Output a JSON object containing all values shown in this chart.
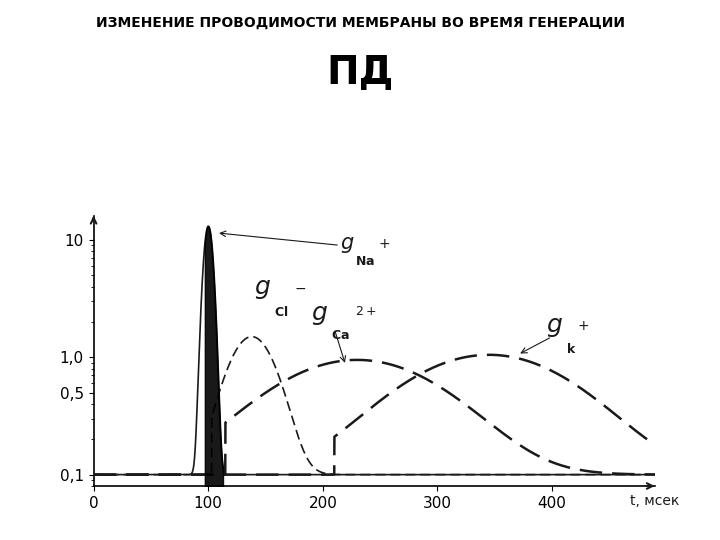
{
  "title_line1": "ИЗМЕНЕНИЕ ПРОВОДИМОСТИ МЕМБРАНЫ ВО ВРЕМЯ ГЕНЕРАЦИИ",
  "title_line2": "ПД",
  "xlabel": "t, мсек",
  "bg_color": "#ffffff",
  "yticks": [
    0.1,
    0.5,
    1.0,
    10
  ],
  "ytick_labels": [
    "0,1",
    "0,5",
    "1,0",
    "10"
  ],
  "xticks": [
    0,
    100,
    200,
    300,
    400
  ],
  "xmin": 0,
  "xmax": 490,
  "ymin": 0.08,
  "ymax": 16,
  "curve_color": "#1a1a1a"
}
